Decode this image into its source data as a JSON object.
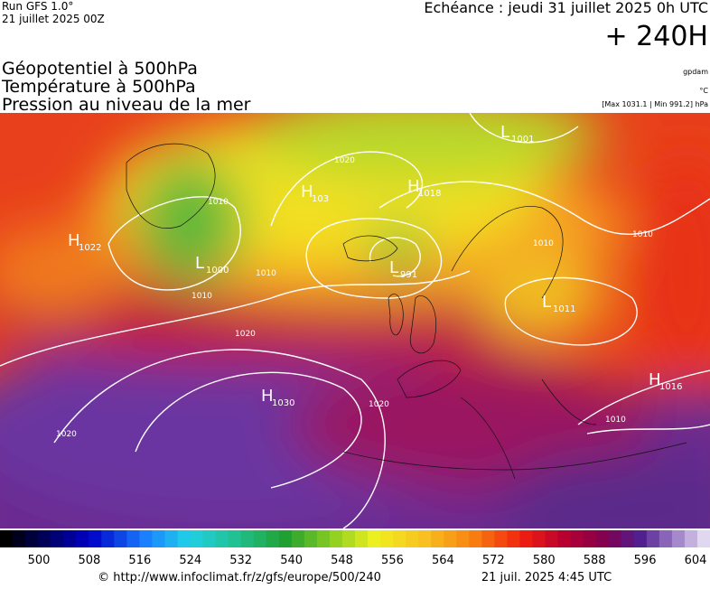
{
  "header": {
    "run": "Run GFS 1.0°",
    "run_date": "21 juillet 2025 00Z",
    "echeance": "Echéance : jeudi 31 juillet 2025 0h UTC",
    "lead": "+ 240H"
  },
  "titles": [
    "Géopotentiel à 500hPa",
    "Température à 500hPa",
    "Pression au niveau de la mer"
  ],
  "units": {
    "geopotential": "gpdam",
    "temperature": "°C",
    "pressure": "[Max 1031.1 | Min 991.2] hPa"
  },
  "map": {
    "centers": [
      {
        "type": "H",
        "value": "1022"
      },
      {
        "type": "L",
        "value": "1000"
      },
      {
        "type": "H",
        "value": "1030"
      },
      {
        "type": "L",
        "value": "991"
      },
      {
        "type": "H",
        "value": "1018"
      },
      {
        "type": "H",
        "value": "103"
      },
      {
        "type": "L",
        "value": "1001"
      },
      {
        "type": "H",
        "value": "1016"
      },
      {
        "type": "L",
        "value": "1011"
      }
    ],
    "isobar_labels": [
      "1010",
      "1010",
      "1010",
      "1010",
      "1010",
      "1020",
      "1020",
      "1020",
      "1020",
      "1010"
    ]
  },
  "colorbar": {
    "labels": [
      500,
      508,
      516,
      524,
      532,
      540,
      548,
      556,
      564,
      572,
      580,
      588,
      596,
      604
    ]
  },
  "footer": {
    "url": "© http://www.infoclimat.fr/z/gfs/europe/500/240",
    "time": "21 juil. 2025  4:45 UTC"
  }
}
